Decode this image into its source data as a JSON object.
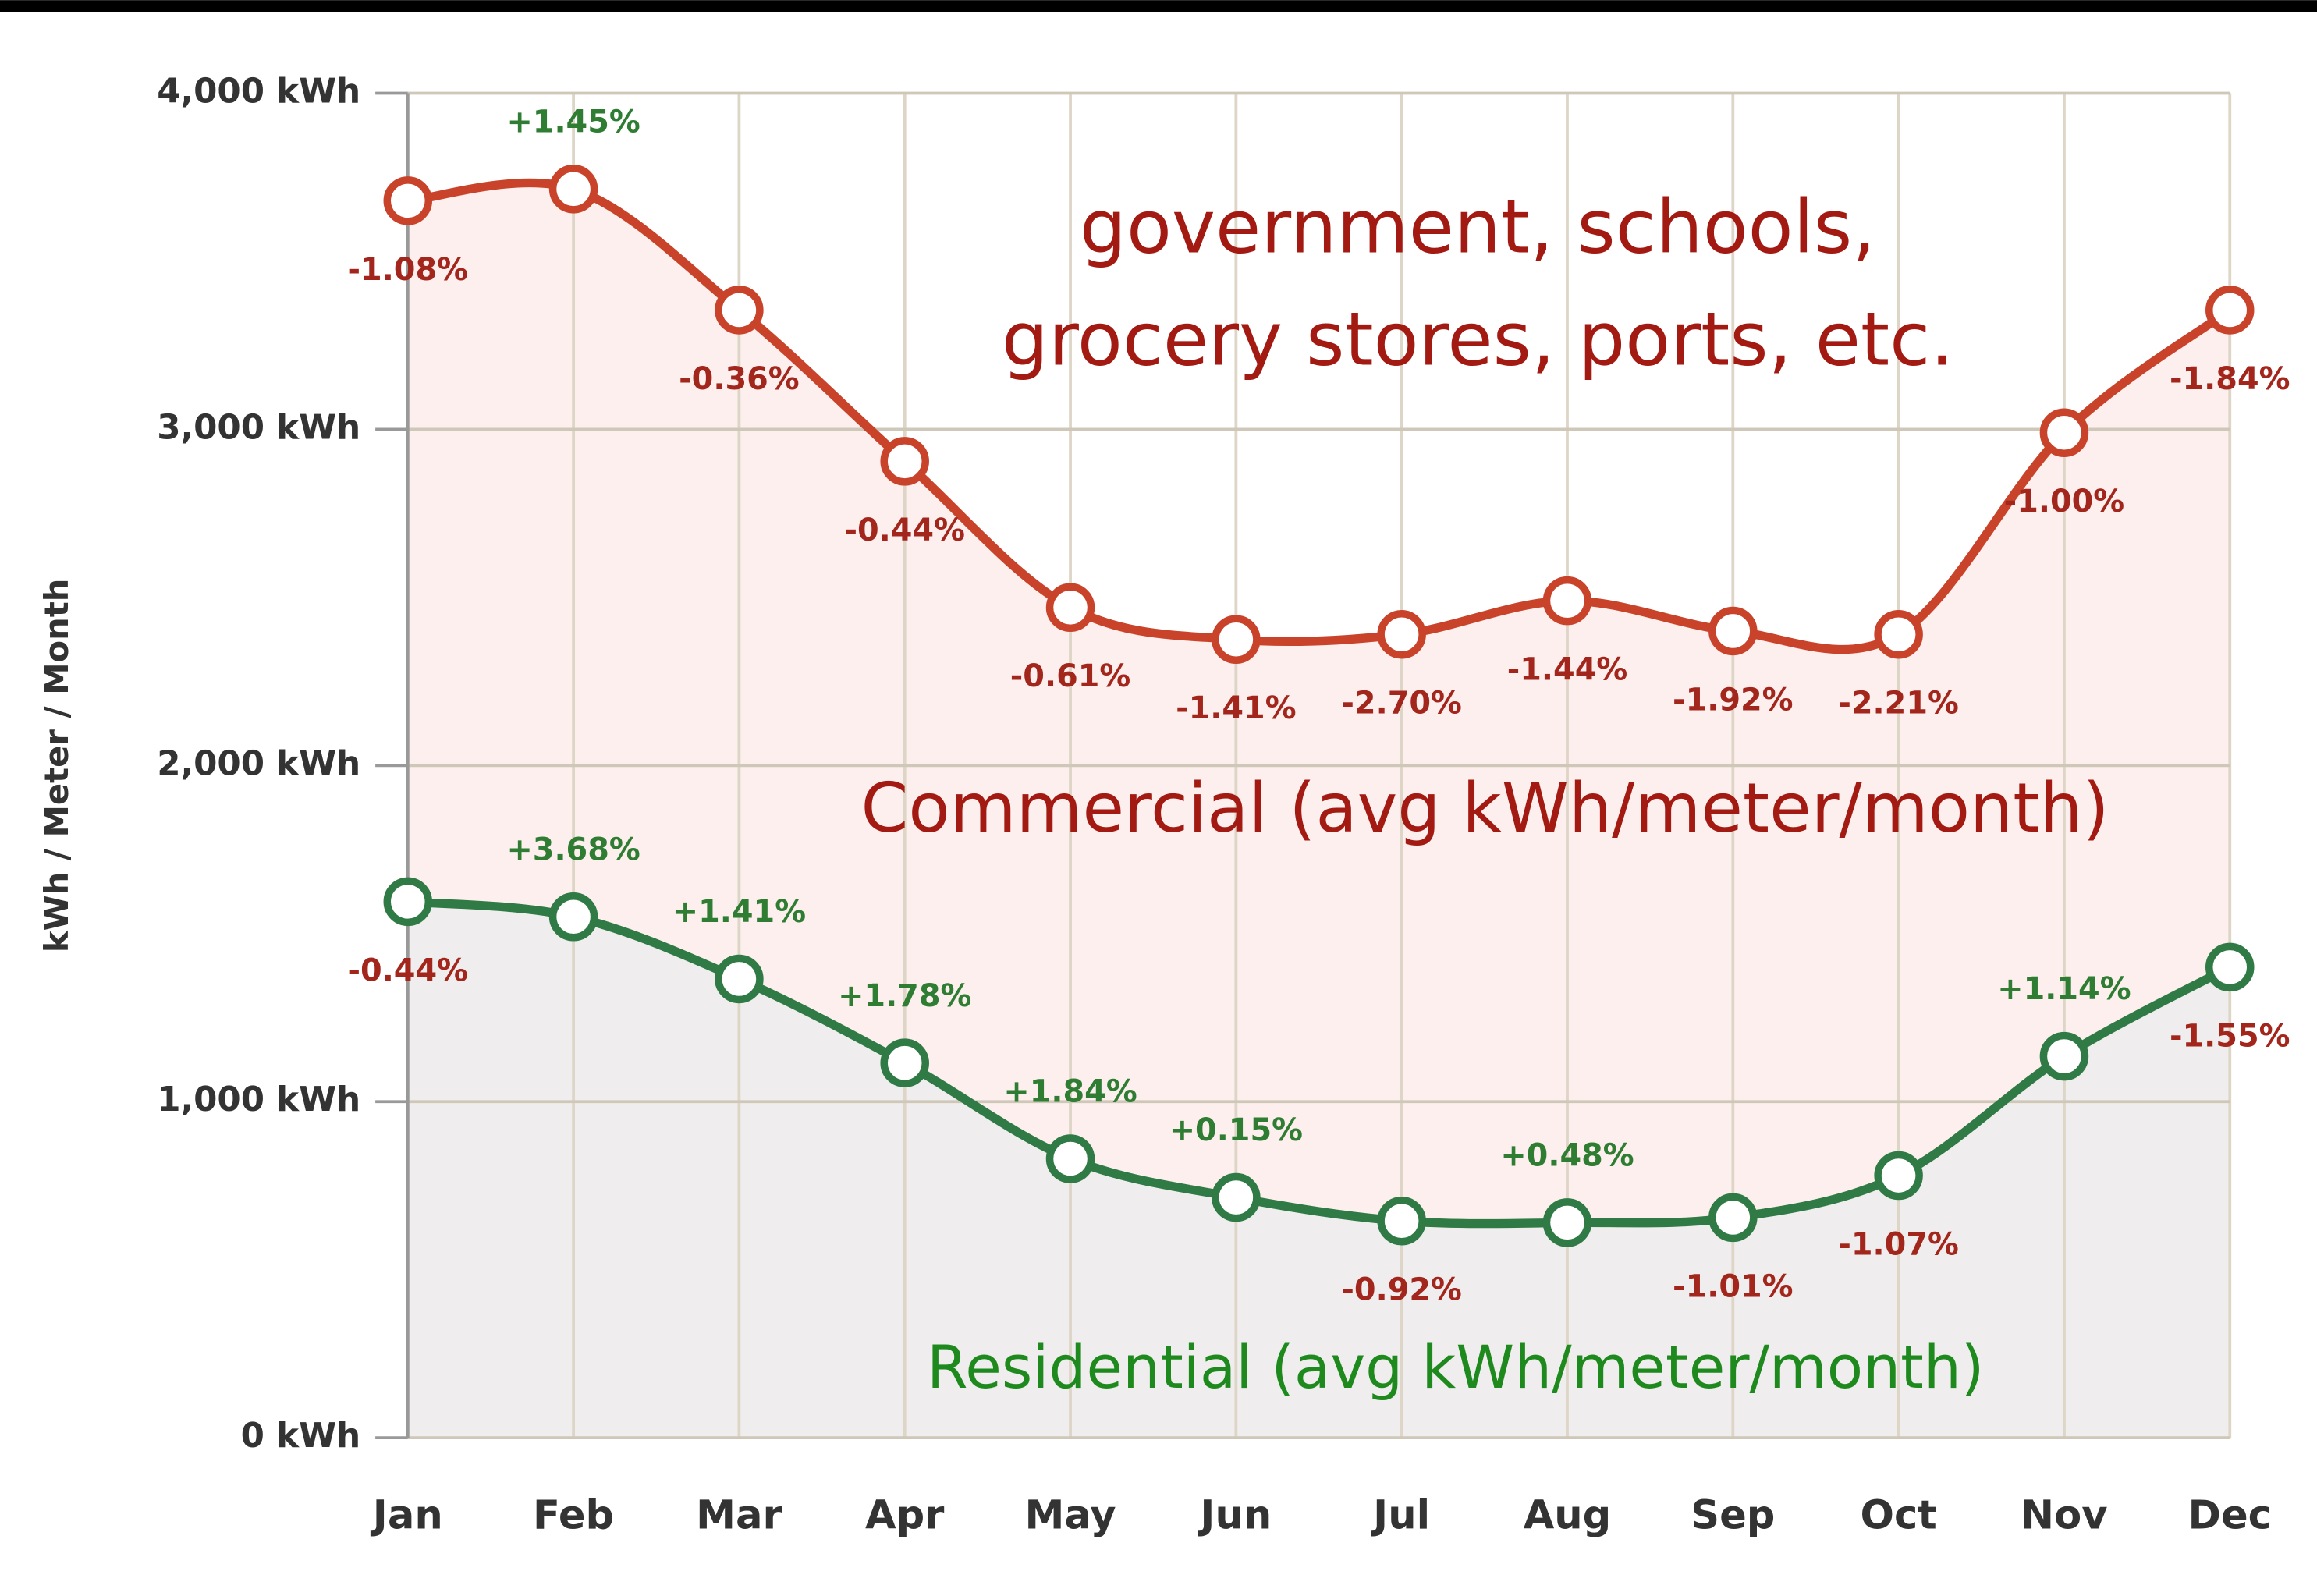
{
  "chart_data": {
    "type": "line",
    "y_label": "kWh / Meter / Month",
    "categories": [
      "Jan",
      "Feb",
      "Mar",
      "Apr",
      "May",
      "Jun",
      "Jul",
      "Aug",
      "Sep",
      "Oct",
      "Nov",
      "Dec"
    ],
    "ylim": [
      0,
      4000
    ],
    "yticks": [
      {
        "value": 0,
        "label": "0 kWh"
      },
      {
        "value": 1000,
        "label": "1,000 kWh"
      },
      {
        "value": 2000,
        "label": "2,000 kWh"
      },
      {
        "value": 3000,
        "label": "3,000 kWh"
      },
      {
        "value": 4000,
        "label": "4,000 kWh"
      }
    ],
    "grid": true,
    "positive_color": "#2e7d32",
    "negative_color": "#a3261c",
    "annotations": [
      "government, schools,",
      "grocery stores, ports, etc."
    ],
    "annotation_color": "#a31a12",
    "series": [
      {
        "name": "Commercial (avg kWh/meter/month)",
        "color": "#c9432b",
        "label_color": "#a31a12",
        "fill": "#fcefee",
        "values": [
          3680,
          3715,
          3355,
          2905,
          2470,
          2375,
          2390,
          2490,
          2400,
          2390,
          2990,
          3355
        ],
        "point_labels": [
          "-1.08%",
          "+1.45%",
          "-0.36%",
          "-0.44%",
          "-0.61%",
          "-1.41%",
          "-2.70%",
          "-1.44%",
          "-1.92%",
          "-2.21%",
          "-1.00%",
          "-1.84%"
        ]
      },
      {
        "name": "Residential (avg kWh/meter/month)",
        "color": "#2f7a45",
        "label_color": "#1e8a1e",
        "fill": "#efeded",
        "values": [
          1595,
          1550,
          1365,
          1115,
          830,
          715,
          645,
          640,
          655,
          780,
          1135,
          1400
        ],
        "point_labels": [
          "-0.44%",
          "+3.68%",
          "+1.41%",
          "+1.78%",
          "+1.84%",
          "+0.15%",
          "-0.92%",
          "+0.48%",
          "-1.01%",
          "-1.07%",
          "+1.14%",
          "-1.55%"
        ]
      }
    ]
  }
}
